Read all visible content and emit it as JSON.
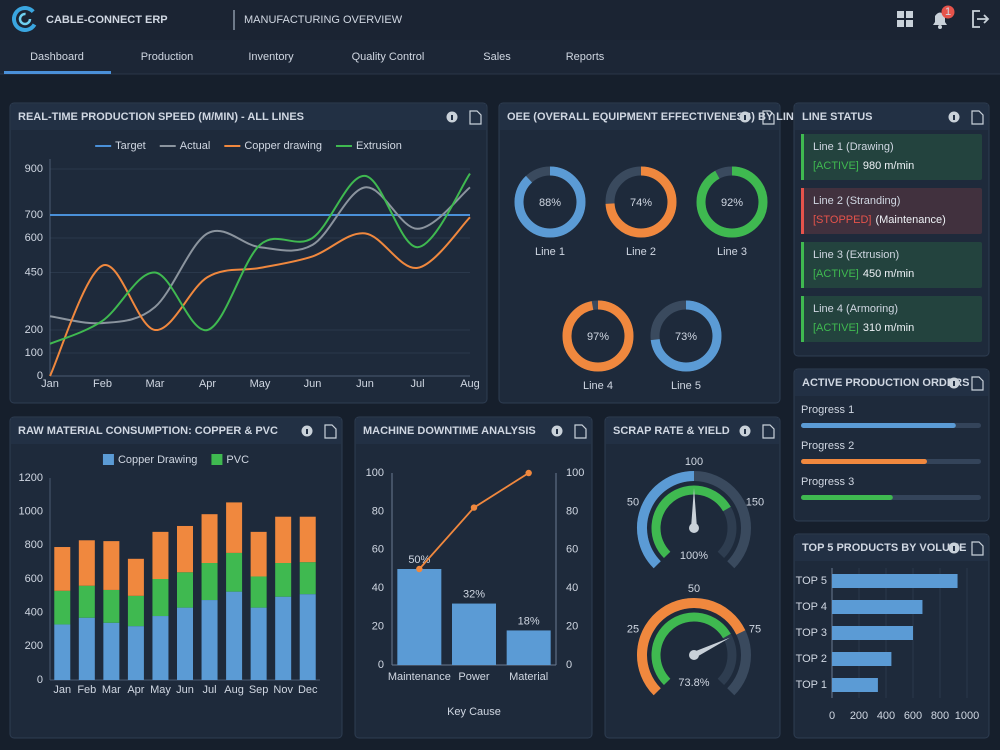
{
  "header": {
    "brand": "CABLE-CONNECT ERP",
    "subtitle": "MANUFACTURING OVERVIEW",
    "notifications": 1
  },
  "nav": {
    "items": [
      "Dashboard",
      "Production",
      "Inventory",
      "Quality Control",
      "Sales",
      "Reports"
    ],
    "active": 0
  },
  "chart_data": [
    {
      "type": "line",
      "title": "REAL-TIME PRODUCTION SPEED (M/MIN) - ALL LINES",
      "categories": [
        "Jan",
        "Feb",
        "Mar",
        "Apr",
        "May",
        "Jun",
        "Jun",
        "Jul",
        "Aug"
      ],
      "series": [
        {
          "name": "Target",
          "color": "#4a90d9",
          "values": [
            700,
            700,
            700,
            700,
            700,
            700,
            700,
            700,
            700
          ]
        },
        {
          "name": "Actual",
          "color": "#8b949e",
          "values": [
            260,
            230,
            300,
            620,
            560,
            570,
            820,
            640,
            820
          ]
        },
        {
          "name": "Copper drawing",
          "color": "#f0883e",
          "values": [
            0,
            480,
            200,
            430,
            470,
            520,
            620,
            470,
            690
          ]
        },
        {
          "name": "Extrusion",
          "color": "#3fb950",
          "values": [
            140,
            240,
            450,
            200,
            570,
            600,
            870,
            560,
            880
          ]
        }
      ],
      "ylim": [
        0,
        900
      ],
      "yticks": [
        0,
        100,
        200,
        450,
        600,
        700,
        900
      ],
      "grid": true
    },
    {
      "type": "donut",
      "title": "OEE (OVERALL EQUIPMENT EFFECTIVENESS) BY LINE",
      "categories": [
        "Line 1",
        "Line 2",
        "Line 3",
        "Line 4",
        "Line 5"
      ],
      "values": [
        88,
        74,
        92,
        97,
        73
      ],
      "value_labels": [
        "88%",
        "74%",
        "92%",
        "97%",
        "73%"
      ],
      "colors": [
        "#5b9bd5",
        "#f0883e",
        "#3fb950",
        "#f0883e",
        "#5b9bd5"
      ]
    },
    {
      "type": "stacked-bar",
      "title": "RAW MATERIAL CONSUMPTION: COPPER & PVC",
      "categories": [
        "Jan",
        "Feb",
        "Mar",
        "Apr",
        "May",
        "Jun",
        "Jul",
        "Aug",
        "Sep",
        "Nov",
        "Dec"
      ],
      "series": [
        {
          "name": "Copper Drawing",
          "color": "#5b9bd5",
          "values": [
            330,
            370,
            340,
            320,
            380,
            430,
            475,
            525,
            430,
            495,
            510
          ]
        },
        {
          "name": "PVC",
          "color": "#3fb950",
          "values": [
            200,
            190,
            195,
            180,
            220,
            210,
            220,
            230,
            185,
            200,
            190
          ]
        },
        {
          "color": "#f0883e",
          "values": [
            260,
            270,
            290,
            220,
            280,
            275,
            290,
            300,
            265,
            275,
            270
          ]
        }
      ],
      "ylim": [
        0,
        1200
      ],
      "yticks": [
        0,
        200,
        400,
        600,
        800,
        1000,
        1200
      ]
    },
    {
      "type": "pareto",
      "title": "MACHINE DOWNTIME ANALYSIS",
      "xlabel": "Key Cause",
      "categories": [
        "Maintenance",
        "Power",
        "Material"
      ],
      "values": [
        50,
        32,
        18
      ],
      "value_labels": [
        "50%",
        "32%",
        "18%"
      ],
      "color": "#5b9bd5",
      "cumulative": {
        "values": [
          50,
          82,
          100
        ],
        "color": "#f0883e",
        "axis": "y2"
      },
      "ylim": [
        0,
        100
      ],
      "yticks": [
        0,
        20,
        40,
        60,
        80,
        100
      ],
      "y2lim": [
        0,
        100
      ],
      "y2ticks": [
        0,
        20,
        40,
        60,
        80,
        100
      ]
    },
    {
      "type": "gauge",
      "title": "SCRAP RATE & YIELD",
      "gauges": [
        {
          "value": 100,
          "value_label": "100%",
          "range": [
            0,
            200
          ],
          "ticks": [
            50,
            100,
            150
          ],
          "color": "#5b9bd5"
        },
        {
          "value": 73.8,
          "value_label": "73.8%",
          "range": [
            0,
            100
          ],
          "ticks": [
            25,
            50,
            75
          ],
          "color": "#f0883e"
        }
      ]
    },
    {
      "type": "hbar",
      "title": "TOP 5 PRODUCTS BY VOLUME",
      "categories": [
        "TOP 5",
        "TOP 4",
        "TOP 3",
        "TOP 2",
        "TOP 1"
      ],
      "values": [
        930,
        670,
        600,
        440,
        340
      ],
      "color": "#5b9bd5",
      "xlim": [
        0,
        1000
      ],
      "xticks": [
        0,
        200,
        400,
        600,
        800,
        1000
      ],
      "grid": true
    }
  ],
  "line_status": {
    "title": "LINE STATUS",
    "items": [
      {
        "name": "Line 1 (Drawing)",
        "status": "[ACTIVE]",
        "detail": "980 m/min",
        "color": "#3fb950"
      },
      {
        "name": "Line 2 (Stranding)",
        "status": "[STOPPED]",
        "detail": "(Maintenance)",
        "color": "#e5534b"
      },
      {
        "name": "Line 3 (Extrusion)",
        "status": "[ACTIVE]",
        "detail": "450 m/min",
        "color": "#3fb950"
      },
      {
        "name": "Line 4 (Armoring)",
        "status": "[ACTIVE]",
        "detail": "310 m/min",
        "color": "#3fb950"
      }
    ]
  },
  "orders": {
    "title": "ACTIVE PRODUCTION ORDERS",
    "items": [
      {
        "label": "Progress 1",
        "value": 86,
        "color": "#5b9bd5"
      },
      {
        "label": "Progress 2",
        "value": 70,
        "color": "#f0883e"
      },
      {
        "label": "Progress 3",
        "value": 51,
        "color": "#3fb950"
      }
    ]
  }
}
